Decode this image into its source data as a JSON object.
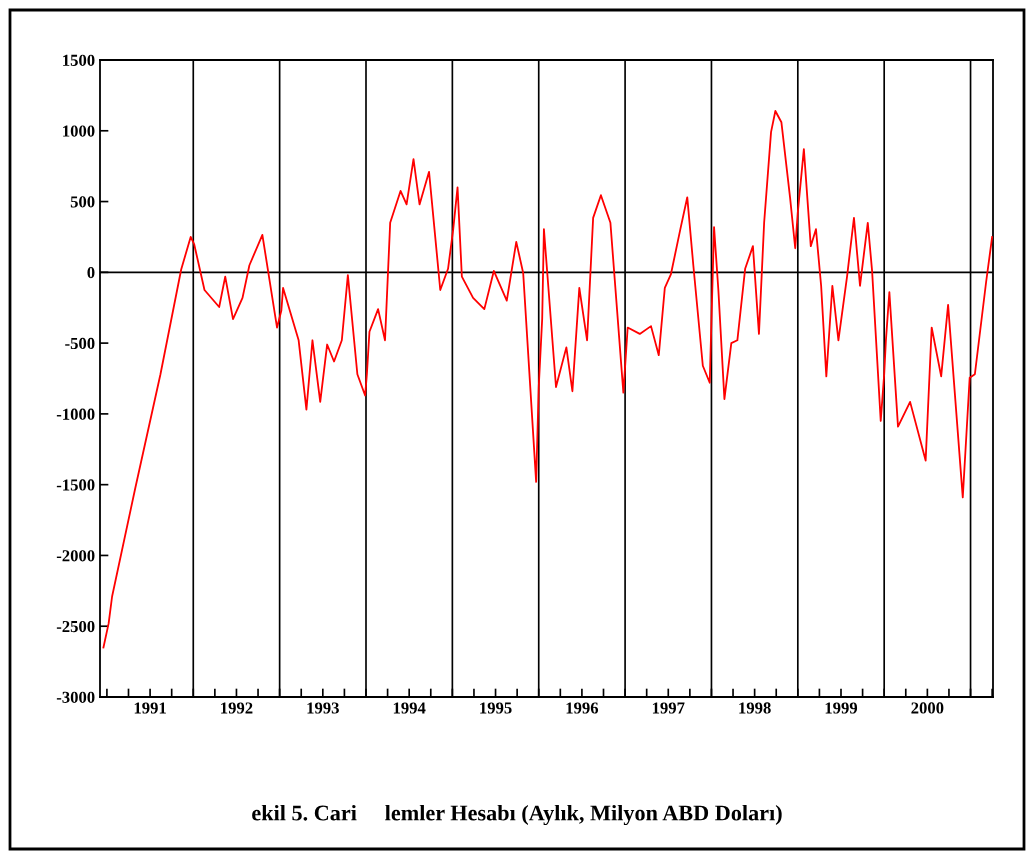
{
  "chart_data": {
    "type": "line",
    "title": "ekil 5. Cari     lemler Hesabı (Aylık, Milyon ABD Doları)",
    "x": [
      1990.96,
      1991.02,
      1991.06,
      1991.33,
      1991.62,
      1991.86,
      1991.97,
      1992.01,
      1992.13,
      1992.3,
      1992.37,
      1992.46,
      1992.57,
      1992.65,
      1992.8,
      1992.97,
      1993.02,
      1993.04,
      1993.22,
      1993.31,
      1993.38,
      1993.47,
      1993.55,
      1993.63,
      1993.72,
      1993.79,
      1993.9,
      1993.99,
      1994.01,
      1994.04,
      1994.14,
      1994.22,
      1994.28,
      1994.4,
      1994.47,
      1994.55,
      1994.62,
      1994.73,
      1994.86,
      1994.95,
      1995.01,
      1995.06,
      1995.11,
      1995.24,
      1995.37,
      1995.48,
      1995.63,
      1995.74,
      1995.82,
      1995.97,
      1996.0,
      1996.04,
      1996.06,
      1996.2,
      1996.32,
      1996.39,
      1996.47,
      1996.56,
      1996.63,
      1996.72,
      1996.83,
      1996.98,
      1997.03,
      1997.17,
      1997.3,
      1997.39,
      1997.46,
      1997.53,
      1997.64,
      1997.72,
      1997.79,
      1997.9,
      1997.98,
      1998.03,
      1998.08,
      1998.15,
      1998.23,
      1998.3,
      1998.39,
      1998.48,
      1998.55,
      1998.61,
      1998.69,
      1998.74,
      1998.81,
      1998.91,
      1998.97,
      1999.0,
      1999.07,
      1999.15,
      1999.21,
      1999.27,
      1999.33,
      1999.4,
      1999.47,
      1999.57,
      1999.65,
      1999.72,
      1999.81,
      1999.86,
      1999.96,
      2000.0,
      2000.02,
      2000.06,
      2000.16,
      2000.3,
      2000.48,
      2000.55,
      2000.66,
      2000.74,
      2000.91,
      2000.99,
      2001.05,
      2001.18,
      2001.25
    ],
    "series": [
      {
        "color": "#ff0000",
        "values": [
          -2650,
          -2480,
          -2290,
          -1520,
          -720,
          20,
          250,
          200,
          -125,
          -245,
          -30,
          -330,
          -180,
          50,
          265,
          -390,
          -270,
          -110,
          -480,
          -970,
          -480,
          -915,
          -510,
          -630,
          -480,
          -20,
          -720,
          -870,
          -720,
          -420,
          -260,
          -480,
          350,
          575,
          480,
          800,
          480,
          710,
          -125,
          25,
          305,
          600,
          -30,
          -180,
          -260,
          10,
          -200,
          215,
          -5,
          -1480,
          -810,
          -330,
          305,
          -810,
          -530,
          -840,
          -110,
          -480,
          385,
          545,
          350,
          -850,
          -390,
          -435,
          -380,
          -585,
          -110,
          -15,
          305,
          530,
          50,
          -660,
          -780,
          320,
          -125,
          -895,
          -500,
          -480,
          25,
          185,
          -435,
          350,
          990,
          1140,
          1060,
          530,
          170,
          425,
          870,
          185,
          305,
          -95,
          -735,
          -95,
          -480,
          -30,
          385,
          -95,
          350,
          10,
          -1050,
          -720,
          -480,
          -140,
          -1090,
          -915,
          -1330,
          -390,
          -735,
          -230,
          -1590,
          -745,
          -720,
          -70,
          250
        ]
      }
    ],
    "xlim": [
      1990.92,
      2001.26
    ],
    "xticks": [
      {
        "value": 1991.0,
        "label": null
      },
      {
        "value": 1991.25,
        "label": null
      },
      {
        "value": 1991.5,
        "label": "1991"
      },
      {
        "value": 1991.75,
        "label": null
      },
      {
        "value": 1992.0,
        "label": null
      },
      {
        "value": 1992.25,
        "label": null
      },
      {
        "value": 1992.5,
        "label": "1992"
      },
      {
        "value": 1992.75,
        "label": null
      },
      {
        "value": 1993.0,
        "label": null
      },
      {
        "value": 1993.25,
        "label": null
      },
      {
        "value": 1993.5,
        "label": "1993"
      },
      {
        "value": 1993.75,
        "label": null
      },
      {
        "value": 1994.0,
        "label": null
      },
      {
        "value": 1994.25,
        "label": null
      },
      {
        "value": 1994.5,
        "label": "1994"
      },
      {
        "value": 1994.75,
        "label": null
      },
      {
        "value": 1995.0,
        "label": null
      },
      {
        "value": 1995.25,
        "label": null
      },
      {
        "value": 1995.5,
        "label": "1995"
      },
      {
        "value": 1995.75,
        "label": null
      },
      {
        "value": 1996.0,
        "label": null
      },
      {
        "value": 1996.25,
        "label": null
      },
      {
        "value": 1996.5,
        "label": "1996"
      },
      {
        "value": 1996.75,
        "label": null
      },
      {
        "value": 1997.0,
        "label": null
      },
      {
        "value": 1997.25,
        "label": null
      },
      {
        "value": 1997.5,
        "label": "1997"
      },
      {
        "value": 1997.75,
        "label": null
      },
      {
        "value": 1998.0,
        "label": null
      },
      {
        "value": 1998.25,
        "label": null
      },
      {
        "value": 1998.5,
        "label": "1998"
      },
      {
        "value": 1998.75,
        "label": null
      },
      {
        "value": 1999.0,
        "label": null
      },
      {
        "value": 1999.25,
        "label": null
      },
      {
        "value": 1999.5,
        "label": "1999"
      },
      {
        "value": 1999.75,
        "label": null
      },
      {
        "value": 2000.0,
        "label": null
      },
      {
        "value": 2000.25,
        "label": null
      },
      {
        "value": 2000.5,
        "label": "2000"
      },
      {
        "value": 2000.75,
        "label": null
      },
      {
        "value": 2001.0,
        "label": null
      },
      {
        "value": 2001.25,
        "label": null
      }
    ],
    "ylim": [
      -3000,
      1500
    ],
    "yticks": [
      -3000,
      -2500,
      -2000,
      -1500,
      -1000,
      -500,
      0,
      500,
      1000,
      1500
    ],
    "ref_lines": [
      {
        "axis": "y",
        "value": 0,
        "color": "#000000"
      },
      {
        "axis": "x",
        "value": 1992,
        "color": "#000000"
      },
      {
        "axis": "x",
        "value": 1993,
        "color": "#000000"
      },
      {
        "axis": "x",
        "value": 1994,
        "color": "#000000"
      },
      {
        "axis": "x",
        "value": 1995,
        "color": "#000000"
      },
      {
        "axis": "x",
        "value": 1996,
        "color": "#000000"
      },
      {
        "axis": "x",
        "value": 1997,
        "color": "#000000"
      },
      {
        "axis": "x",
        "value": 1998,
        "color": "#000000"
      },
      {
        "axis": "x",
        "value": 1999,
        "color": "#000000"
      },
      {
        "axis": "x",
        "value": 2000,
        "color": "#000000"
      },
      {
        "axis": "x",
        "value": 2001,
        "color": "#000000"
      }
    ],
    "grid": false,
    "marker": "none",
    "line_style": "solid"
  }
}
